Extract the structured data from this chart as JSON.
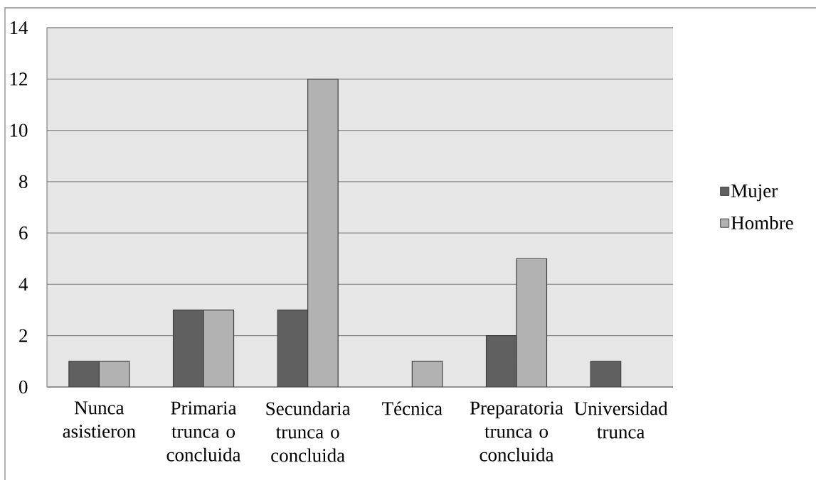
{
  "chart_data": {
    "type": "bar",
    "categories": [
      "Nunca asistieron",
      "Primaria trunca o concluida",
      "Secundaria trunca o concluida",
      "Técnica",
      "Preparatoria trunca o concluida",
      "Universidad trunca"
    ],
    "series": [
      {
        "name": "Mujer",
        "color": "#606060",
        "values": [
          1,
          3,
          3,
          0,
          2,
          1
        ]
      },
      {
        "name": "Hombre",
        "color": "#b2b2b2",
        "values": [
          1,
          3,
          12,
          1,
          5,
          0
        ]
      }
    ],
    "ylim": [
      0,
      14
    ],
    "yticks": [
      0,
      2,
      4,
      6,
      8,
      10,
      12,
      14
    ],
    "grid": "y",
    "legend": "right"
  }
}
